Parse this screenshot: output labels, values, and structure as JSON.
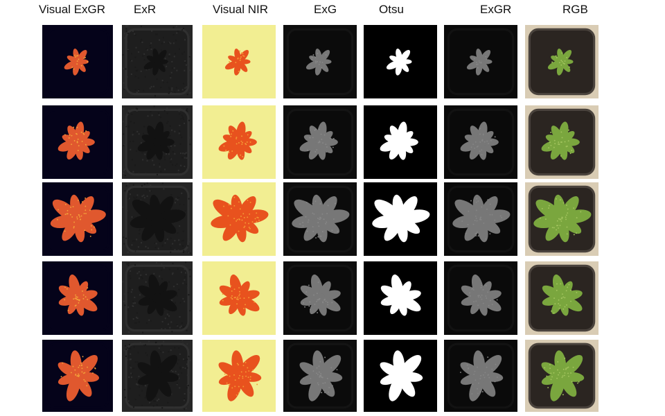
{
  "columns": [
    {
      "key": "visual_exgr",
      "label": "Visual ExGR",
      "bg": "#05031a",
      "pot": "#05031a",
      "potStroke": "#05031a",
      "plant": "#e0582e",
      "speckle": "#f3a23a",
      "noise": false
    },
    {
      "key": "exr",
      "label": "ExR",
      "bg": "#262626",
      "pot": "#1e1e1e",
      "potStroke": "#303030",
      "plant": "#121212",
      "speckle": "#121212",
      "noise": true
    },
    {
      "key": "visual_nir",
      "label": "Visual NIR",
      "bg": "#f2ee92",
      "pot": "#f2ee92",
      "potStroke": "#f2ee92",
      "plant": "#e8521e",
      "speckle": "#f49a35",
      "noise": false
    },
    {
      "key": "exg",
      "label": "ExG",
      "bg": "#0d0d0d",
      "pot": "#0b0b0b",
      "potStroke": "#141414",
      "plant": "#777777",
      "speckle": "#888888",
      "noise": false
    },
    {
      "key": "otsu",
      "label": "Otsu",
      "bg": "#000000",
      "pot": "#000000",
      "potStroke": "#000000",
      "plant": "#ffffff",
      "speckle": "#ffffff",
      "noise": false
    },
    {
      "key": "exgr",
      "label": "ExGR",
      "bg": "#0a0a0a",
      "pot": "#0a0a0a",
      "potStroke": "#121212",
      "plant": "#777777",
      "speckle": "#858585",
      "noise": false
    },
    {
      "key": "rgb",
      "label": "RGB",
      "bg": "#d9ccb4",
      "pot": "#2b2521",
      "potStroke": "#4a433d",
      "plant": "#7aa63e",
      "speckle": "#a2c45e",
      "noise": false
    }
  ],
  "rows": [
    {
      "plant_size": 0.32,
      "leaves": 7
    },
    {
      "plant_size": 0.55,
      "leaves": 9
    },
    {
      "plant_size": 0.9,
      "leaves": 8
    },
    {
      "plant_size": 0.65,
      "leaves": 8
    },
    {
      "plant_size": 0.8,
      "leaves": 7
    }
  ]
}
